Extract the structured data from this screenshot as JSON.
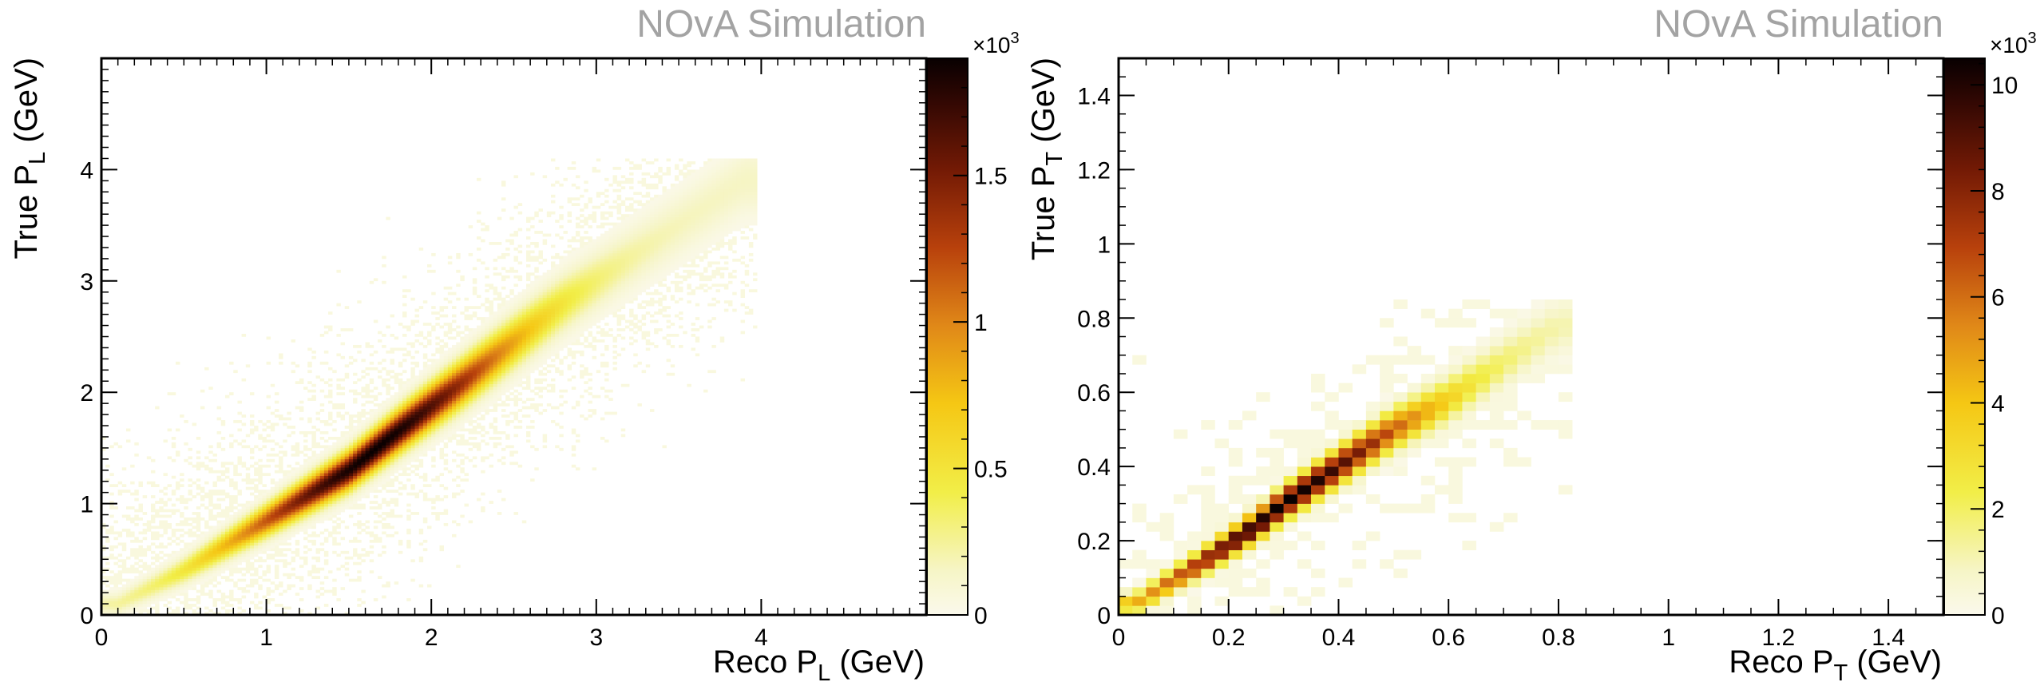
{
  "chart_data": [
    {
      "type": "heatmap",
      "watermark": "NOvA Simulation",
      "xlabel": {
        "main": "Reco P",
        "sub": "L",
        "unit": " (GeV)"
      },
      "ylabel": {
        "main": "True P",
        "sub": "L",
        "unit": " (GeV)"
      },
      "xlim": [
        0,
        5
      ],
      "ylim": [
        0,
        5
      ],
      "x_ticks": [
        "0",
        "1",
        "2",
        "3",
        "4"
      ],
      "y_ticks": [
        "0",
        "1",
        "2",
        "3",
        "4"
      ],
      "x_tick_values": [
        0,
        1,
        2,
        3,
        4
      ],
      "y_tick_values": [
        0,
        1,
        2,
        3,
        4
      ],
      "bins": 200,
      "z_multiplier": "×10",
      "z_exponent": "3",
      "z_range": [
        0,
        1.9
      ],
      "z_ticks": [
        "0",
        "0.5",
        "1",
        "1.5"
      ],
      "z_tick_values": [
        0,
        0.5,
        1,
        1.5
      ],
      "grid": false,
      "distribution": {
        "description_of_band": "diagonal ridge",
        "ridge_points": [
          [
            0.1,
            0.1
          ],
          [
            0.5,
            0.4
          ],
          [
            1.0,
            0.85
          ],
          [
            1.5,
            1.3
          ],
          [
            1.8,
            1.65
          ],
          [
            2.2,
            2.1
          ],
          [
            2.8,
            2.8
          ],
          [
            3.5,
            3.5
          ],
          [
            3.9,
            3.9
          ]
        ],
        "peak_x": 1.65,
        "peak_value": 1.9
      }
    },
    {
      "type": "heatmap",
      "watermark": "NOvA Simulation",
      "xlabel": {
        "main": "Reco P",
        "sub": "T",
        "unit": " (GeV)"
      },
      "ylabel": {
        "main": "True P",
        "sub": "T",
        "unit": " (GeV)"
      },
      "xlim": [
        0,
        1.5
      ],
      "ylim": [
        0,
        1.5
      ],
      "x_ticks": [
        "0",
        "0.2",
        "0.4",
        "0.6",
        "0.8",
        "1",
        "1.2",
        "1.4"
      ],
      "y_ticks": [
        "0",
        "0.2",
        "0.4",
        "0.6",
        "0.8",
        "1",
        "1.2",
        "1.4"
      ],
      "x_tick_values": [
        0,
        0.2,
        0.4,
        0.6,
        0.8,
        1.0,
        1.2,
        1.4
      ],
      "y_tick_values": [
        0,
        0.2,
        0.4,
        0.6,
        0.8,
        1.0,
        1.2,
        1.4
      ],
      "bins": 60,
      "z_multiplier": "×10",
      "z_exponent": "3",
      "z_range": [
        0,
        10.5
      ],
      "z_ticks": [
        "0",
        "2",
        "4",
        "6",
        "8",
        "10"
      ],
      "z_tick_values": [
        0,
        2,
        4,
        6,
        8,
        10
      ],
      "grid": false,
      "distribution": {
        "description_of_band": "diagonal ridge",
        "ridge_points": [
          [
            0.03,
            0.03
          ],
          [
            0.15,
            0.14
          ],
          [
            0.25,
            0.24
          ],
          [
            0.3,
            0.3
          ],
          [
            0.4,
            0.4
          ],
          [
            0.5,
            0.5
          ],
          [
            0.6,
            0.58
          ],
          [
            0.8,
            0.78
          ]
        ],
        "peak_x": 0.3,
        "peak_value": 10.5
      }
    }
  ]
}
